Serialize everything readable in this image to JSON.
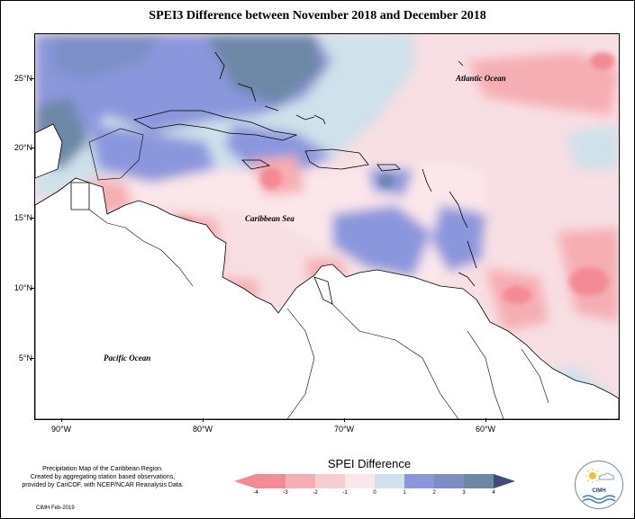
{
  "title": "SPEI3 Difference between November 2018 and December 2018",
  "axes": {
    "lat_labels": [
      "25°N",
      "20°N",
      "15°N",
      "10°N",
      "5°N"
    ],
    "lon_labels": [
      "90°W",
      "80°W",
      "70°W",
      "60°W"
    ]
  },
  "map_labels": {
    "atlantic": "Atlantic Ocean",
    "caribbean": "Caribbean Sea",
    "pacific": "Pacific Ocean"
  },
  "legend": {
    "title": "SPEI Difference",
    "ticks": [
      "-4",
      "-3",
      "-2",
      "-1",
      "0",
      "1",
      "2",
      "3",
      "4"
    ],
    "colors": [
      "#f48a94",
      "#f5aeb3",
      "#f7cdd2",
      "#fbe6ea",
      "#cfe1ea",
      "#8b97dc",
      "#7b8fc6",
      "#6d88a7",
      "#3f4a7e"
    ]
  },
  "caption": {
    "line1": "Precipitation Map of the Caribbean Region.",
    "line2": "Created by aggregating station based observations,",
    "line3": "provided by CariCOF, with NCEP/NCAR Reanalysis Data."
  },
  "credit": "CIMH Feb-2019",
  "logo": {
    "text": "CIMH",
    "icon": "sun-cloud-wave-logo-icon"
  }
}
